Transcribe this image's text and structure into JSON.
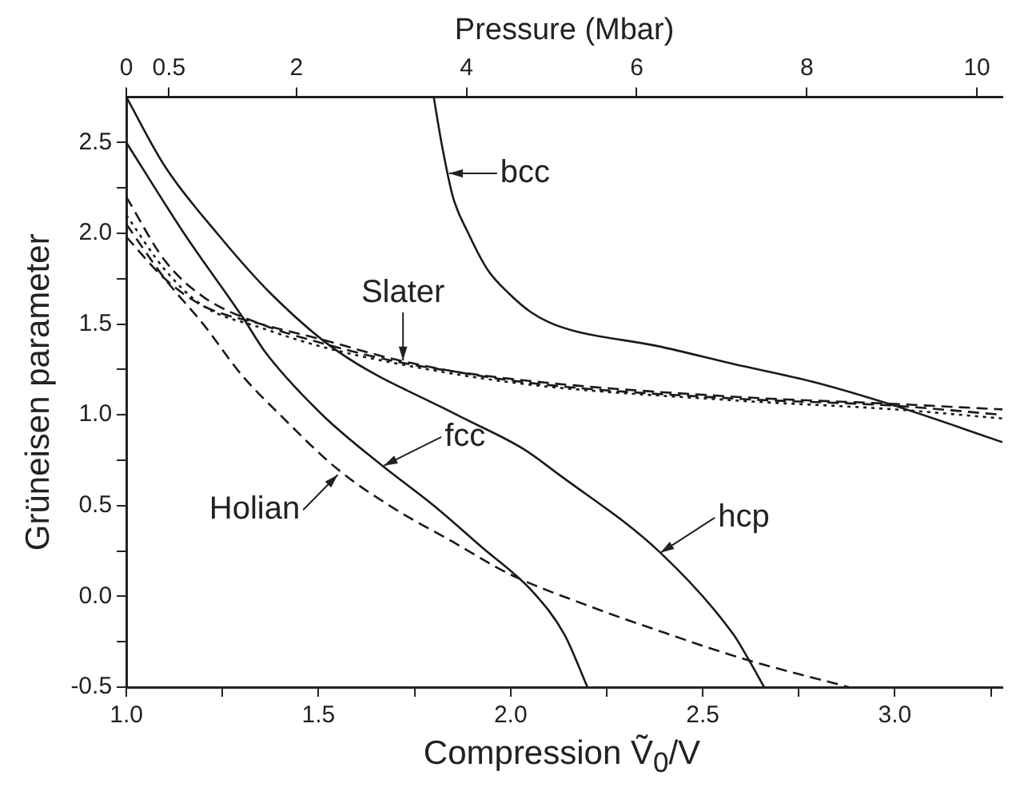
{
  "chart_data": {
    "type": "line",
    "xlabel": "Compression  Ṽ$_{0}$/V",
    "ylabel": "Grüneisen parameter",
    "x2label": "Pressure (Mbar)",
    "xlim": [
      1.0,
      3.28
    ],
    "ylim": [
      -0.5,
      2.75
    ],
    "xticks": [
      {
        "value": 1.0,
        "label": "1.0"
      },
      {
        "value": 1.25,
        "label": null
      },
      {
        "value": 1.5,
        "label": "1.5"
      },
      {
        "value": 1.75,
        "label": null
      },
      {
        "value": 2.0,
        "label": "2.0"
      },
      {
        "value": 2.25,
        "label": null
      },
      {
        "value": 2.5,
        "label": "2.5"
      },
      {
        "value": 2.75,
        "label": null
      },
      {
        "value": 3.0,
        "label": "3.0"
      },
      {
        "value": 3.25,
        "label": null
      }
    ],
    "yticks": [
      {
        "value": -0.5,
        "label": "-0.5"
      },
      {
        "value": -0.25,
        "label": null
      },
      {
        "value": 0,
        "label": "0.0"
      },
      {
        "value": 0.25,
        "label": null
      },
      {
        "value": 0.5,
        "label": "0.5"
      },
      {
        "value": 0.75,
        "label": null
      },
      {
        "value": 1.0,
        "label": "1.0"
      },
      {
        "value": 1.25,
        "label": null
      },
      {
        "value": 1.5,
        "label": "1.5"
      },
      {
        "value": 1.75,
        "label": null
      },
      {
        "value": 2.0,
        "label": "2.0"
      },
      {
        "value": 2.25,
        "label": null
      },
      {
        "value": 2.5,
        "label": "2.5"
      }
    ],
    "x2lim": [
      0,
      10.3
    ],
    "x2ticks": [
      0,
      0.5,
      2,
      4,
      6,
      8,
      10
    ],
    "grid": false,
    "legend": false,
    "marker": "none",
    "series": [
      {
        "color": "#1a1a1a",
        "line_style": "solid",
        "x": [
          1.8,
          1.82,
          1.85,
          1.89,
          1.94,
          2.0,
          2.05,
          2.1,
          2.17,
          2.38,
          2.58,
          2.79,
          3.0,
          3.28
        ],
        "values": [
          2.75,
          2.5,
          2.2,
          2.0,
          1.8,
          1.66,
          1.57,
          1.51,
          1.46,
          1.38,
          1.28,
          1.18,
          1.05,
          0.85
        ]
      },
      {
        "color": "#1a1a1a",
        "line_style": "solid",
        "x": [
          1.0,
          1.1,
          1.24,
          1.375,
          1.55,
          1.86,
          2.035,
          2.12,
          2.39,
          2.58,
          2.62,
          2.66
        ],
        "values": [
          2.75,
          2.37,
          1.99,
          1.67,
          1.35,
          1.0,
          0.81,
          0.68,
          0.24,
          -0.21,
          -0.35,
          -0.5
        ]
      },
      {
        "color": "#1a1a1a",
        "line_style": "solid",
        "x": [
          1.0,
          1.15,
          1.305,
          1.36,
          1.51,
          1.66,
          1.8,
          1.92,
          2.06,
          2.14,
          2.2
        ],
        "values": [
          2.5,
          2.0,
          1.53,
          1.35,
          1.0,
          0.73,
          0.5,
          0.28,
          0.02,
          -0.21,
          -0.5
        ]
      },
      {
        "color": "#1a1a1a",
        "line_style": "dashed",
        "x": [
          1.0,
          1.1,
          1.2,
          1.3,
          1.4,
          1.55,
          1.7,
          1.85,
          2.0,
          2.2,
          2.4,
          2.6,
          2.88
        ],
        "values": [
          2.05,
          1.75,
          1.5,
          1.22,
          1.0,
          0.7,
          0.48,
          0.3,
          0.12,
          -0.05,
          -0.2,
          -0.34,
          -0.5
        ]
      },
      {
        "color": "#1a1a1a",
        "line_style": "dashed",
        "x": [
          1.0,
          1.1,
          1.2,
          1.35,
          1.5,
          1.71,
          2.035,
          2.58,
          3.0,
          3.28
        ],
        "values": [
          2.2,
          1.85,
          1.65,
          1.5,
          1.4,
          1.29,
          1.19,
          1.1,
          1.06,
          1.03
        ]
      },
      {
        "color": "#1a1a1a",
        "line_style": "dotted",
        "x": [
          1.0,
          1.1,
          1.2,
          1.35,
          1.5,
          1.71,
          2.035,
          2.58,
          3.0,
          3.28
        ],
        "values": [
          2.1,
          1.8,
          1.6,
          1.48,
          1.38,
          1.28,
          1.17,
          1.08,
          1.03,
          0.98
        ]
      },
      {
        "color": "#1a1a1a",
        "line_style": "dashed",
        "x": [
          1.0,
          1.1,
          1.2,
          1.35,
          1.5,
          1.71,
          2.035,
          2.58,
          3.0,
          3.28
        ],
        "values": [
          1.98,
          1.75,
          1.6,
          1.5,
          1.42,
          1.3,
          1.18,
          1.09,
          1.05,
          1.0
        ]
      }
    ],
    "annotations": [
      {
        "text": "bcc",
        "x": 1.84,
        "y": 2.33
      },
      {
        "text": "Slater",
        "x": 1.72,
        "y": 1.3
      },
      {
        "text": "fcc",
        "x": 1.67,
        "y": 0.72
      },
      {
        "text": "Holian",
        "x": 1.55,
        "y": 0.67
      },
      {
        "text": "hcp",
        "x": 2.39,
        "y": 0.24
      }
    ]
  }
}
